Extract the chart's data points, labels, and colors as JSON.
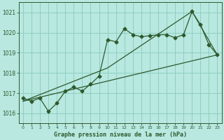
{
  "title": "Graphe pression niveau de la mer (hPa)",
  "bg_color": "#b8e8e0",
  "grid_color": "#88ccbb",
  "line_color": "#2d5a2d",
  "xlim": [
    -0.5,
    23.5
  ],
  "ylim": [
    1015.5,
    1021.5
  ],
  "yticks": [
    1016,
    1017,
    1018,
    1019,
    1020,
    1021
  ],
  "xticks": [
    0,
    1,
    2,
    3,
    4,
    5,
    6,
    7,
    8,
    9,
    10,
    11,
    12,
    13,
    14,
    15,
    16,
    17,
    18,
    19,
    20,
    21,
    22,
    23
  ],
  "series1_x": [
    0,
    1,
    2,
    3,
    4,
    5,
    6,
    7,
    8,
    9,
    10,
    11,
    12,
    13,
    14,
    15,
    16,
    17,
    18,
    19,
    20,
    21,
    22,
    23
  ],
  "series1_y": [
    1016.75,
    1016.6,
    1016.75,
    1016.1,
    1016.5,
    1017.1,
    1017.3,
    1017.1,
    1017.45,
    1017.85,
    1019.65,
    1019.55,
    1020.2,
    1019.9,
    1019.8,
    1019.85,
    1019.9,
    1019.9,
    1019.75,
    1019.9,
    1021.05,
    1020.4,
    1019.4,
    1018.9
  ],
  "series2_x": [
    0,
    23
  ],
  "series2_y": [
    1016.6,
    1018.9
  ],
  "series3_x": [
    0,
    10,
    20,
    23
  ],
  "series3_y": [
    1016.6,
    1018.25,
    1021.05,
    1018.9
  ],
  "marker": "D",
  "markersize": 2.5,
  "linewidth": 0.9
}
